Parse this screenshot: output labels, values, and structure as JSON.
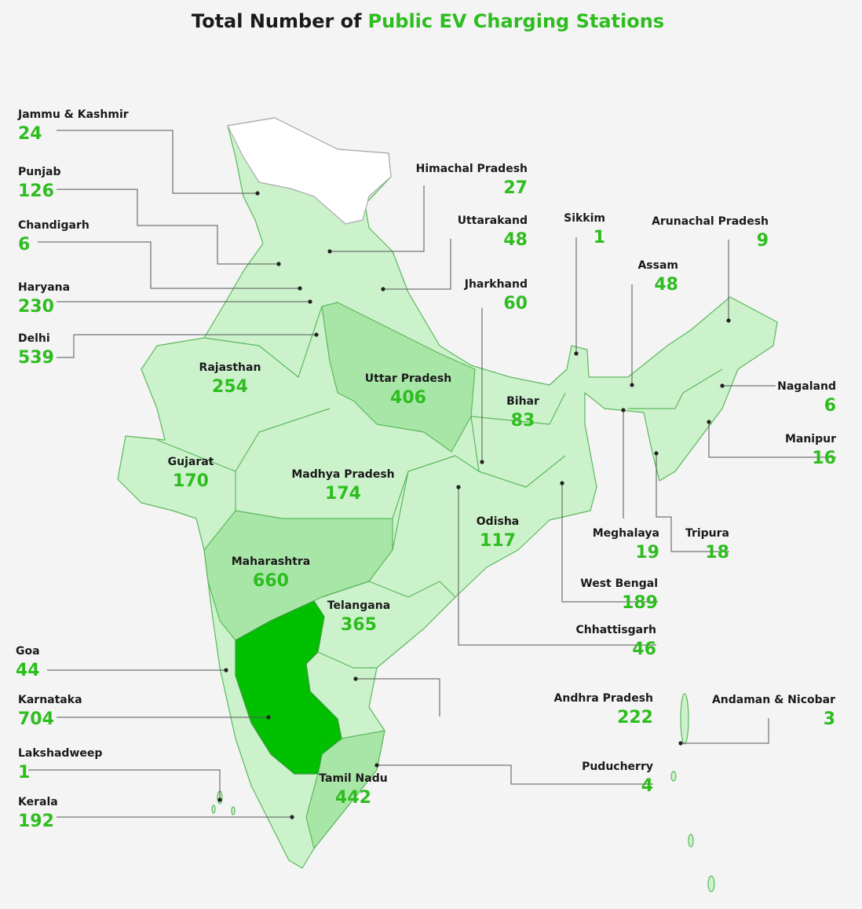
{
  "title": {
    "text": "Total Number of",
    "highlight": "Public EV Charging Stations"
  },
  "regions": [
    {
      "name": "Jammu & Kashmir",
      "value": 24
    },
    {
      "name": "Punjab",
      "value": 126
    },
    {
      "name": "Chandigarh",
      "value": 6
    },
    {
      "name": "Haryana",
      "value": 230
    },
    {
      "name": "Delhi",
      "value": 539
    },
    {
      "name": "Himachal Pradesh",
      "value": 27
    },
    {
      "name": "Uttarakand",
      "value": 48
    },
    {
      "name": "Jharkhand",
      "value": 60
    },
    {
      "name": "Sikkim",
      "value": 1
    },
    {
      "name": "Arunachal Pradesh",
      "value": 9
    },
    {
      "name": "Assam",
      "value": 48
    },
    {
      "name": "Nagaland",
      "value": 6
    },
    {
      "name": "Manipur",
      "value": 16
    },
    {
      "name": "Meghalaya",
      "value": 19
    },
    {
      "name": "Tripura",
      "value": 18
    },
    {
      "name": "West Bengal",
      "value": 189
    },
    {
      "name": "Chhattisgarh",
      "value": 46
    },
    {
      "name": "Andhra Pradesh",
      "value": 222
    },
    {
      "name": "Andaman & Nicobar",
      "value": 3
    },
    {
      "name": "Puducherry",
      "value": 4
    },
    {
      "name": "Goa",
      "value": 44
    },
    {
      "name": "Karnataka",
      "value": 704
    },
    {
      "name": "Lakshadweep",
      "value": 1
    },
    {
      "name": "Kerala",
      "value": 192
    },
    {
      "name": "Rajasthan",
      "value": 254
    },
    {
      "name": "Uttar Pradesh",
      "value": 406
    },
    {
      "name": "Bihar",
      "value": 83
    },
    {
      "name": "Gujarat",
      "value": 170
    },
    {
      "name": "Madhya Pradesh",
      "value": 174
    },
    {
      "name": "Odisha",
      "value": 117
    },
    {
      "name": "Maharashtra",
      "value": 660
    },
    {
      "name": "Telangana",
      "value": 365
    },
    {
      "name": "Tamil Nadu",
      "value": 442
    }
  ]
}
